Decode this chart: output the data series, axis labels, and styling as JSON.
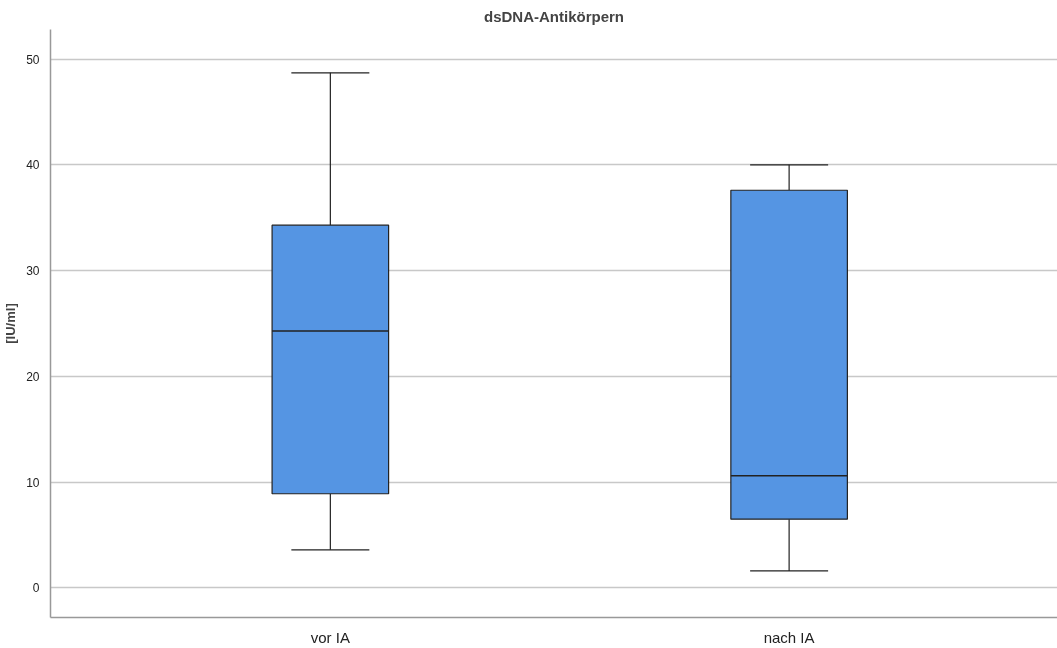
{
  "chart_data": {
    "type": "box",
    "title": "dsDNA-Antikörpern",
    "ylabel": "[IU/ml]",
    "categories": [
      "vor IA",
      "nach IA"
    ],
    "boxes": [
      {
        "low": 3.6,
        "q1": 8.9,
        "median": 24.3,
        "q3": 34.3,
        "high": 48.7
      },
      {
        "low": 1.6,
        "q1": 6.5,
        "median": 10.6,
        "q3": 37.6,
        "high": 40.0
      }
    ],
    "color": "#5595e3",
    "ylim": [
      -2.8,
      52.8
    ],
    "yticks": [
      0,
      10,
      20,
      30,
      40,
      50
    ],
    "grid": "y"
  }
}
